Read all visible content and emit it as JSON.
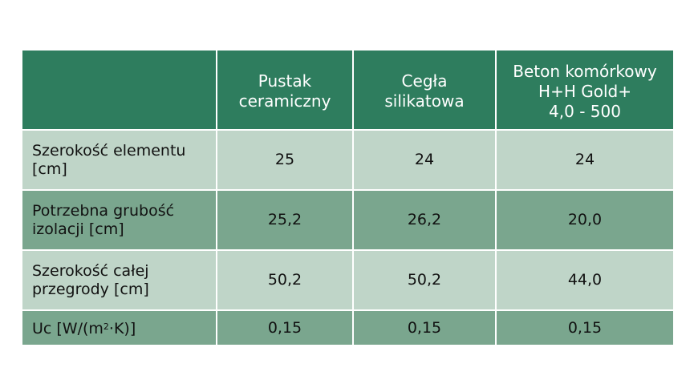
{
  "table": {
    "headers": [
      "",
      "Pustak\nceramiczny",
      "Cegła\nsilikatowa",
      "Beton komórkowy\nH+H Gold+\n4,0 - 500"
    ],
    "header_lines": [
      [],
      [
        "Pustak",
        "ceramiczny"
      ],
      [
        "Cegła",
        "silikatowa"
      ],
      [
        "Beton komórkowy",
        "H+H Gold+",
        "4,0 - 500"
      ]
    ],
    "rows": [
      {
        "label_lines": [
          "Szerokość elementu",
          "[cm]"
        ],
        "values": [
          "25",
          "24",
          "24"
        ]
      },
      {
        "label_lines": [
          "Potrzebna grubość",
          "izolacji [cm]"
        ],
        "values": [
          "25,2",
          "26,2",
          "20,0"
        ]
      },
      {
        "label_lines": [
          "Szerokość całej",
          "przegrody [cm]"
        ],
        "values": [
          "50,2",
          "50,2",
          "44,0"
        ]
      },
      {
        "label_pre": "Uc [W/(m",
        "label_sup": "2",
        "label_post": "·K)]",
        "values": [
          "0,15",
          "0,15",
          "0,15"
        ]
      }
    ],
    "colors": {
      "header_bg": "#2e7d5e",
      "row_light": "#bfd5c8",
      "row_dark": "#7aa68e"
    }
  }
}
